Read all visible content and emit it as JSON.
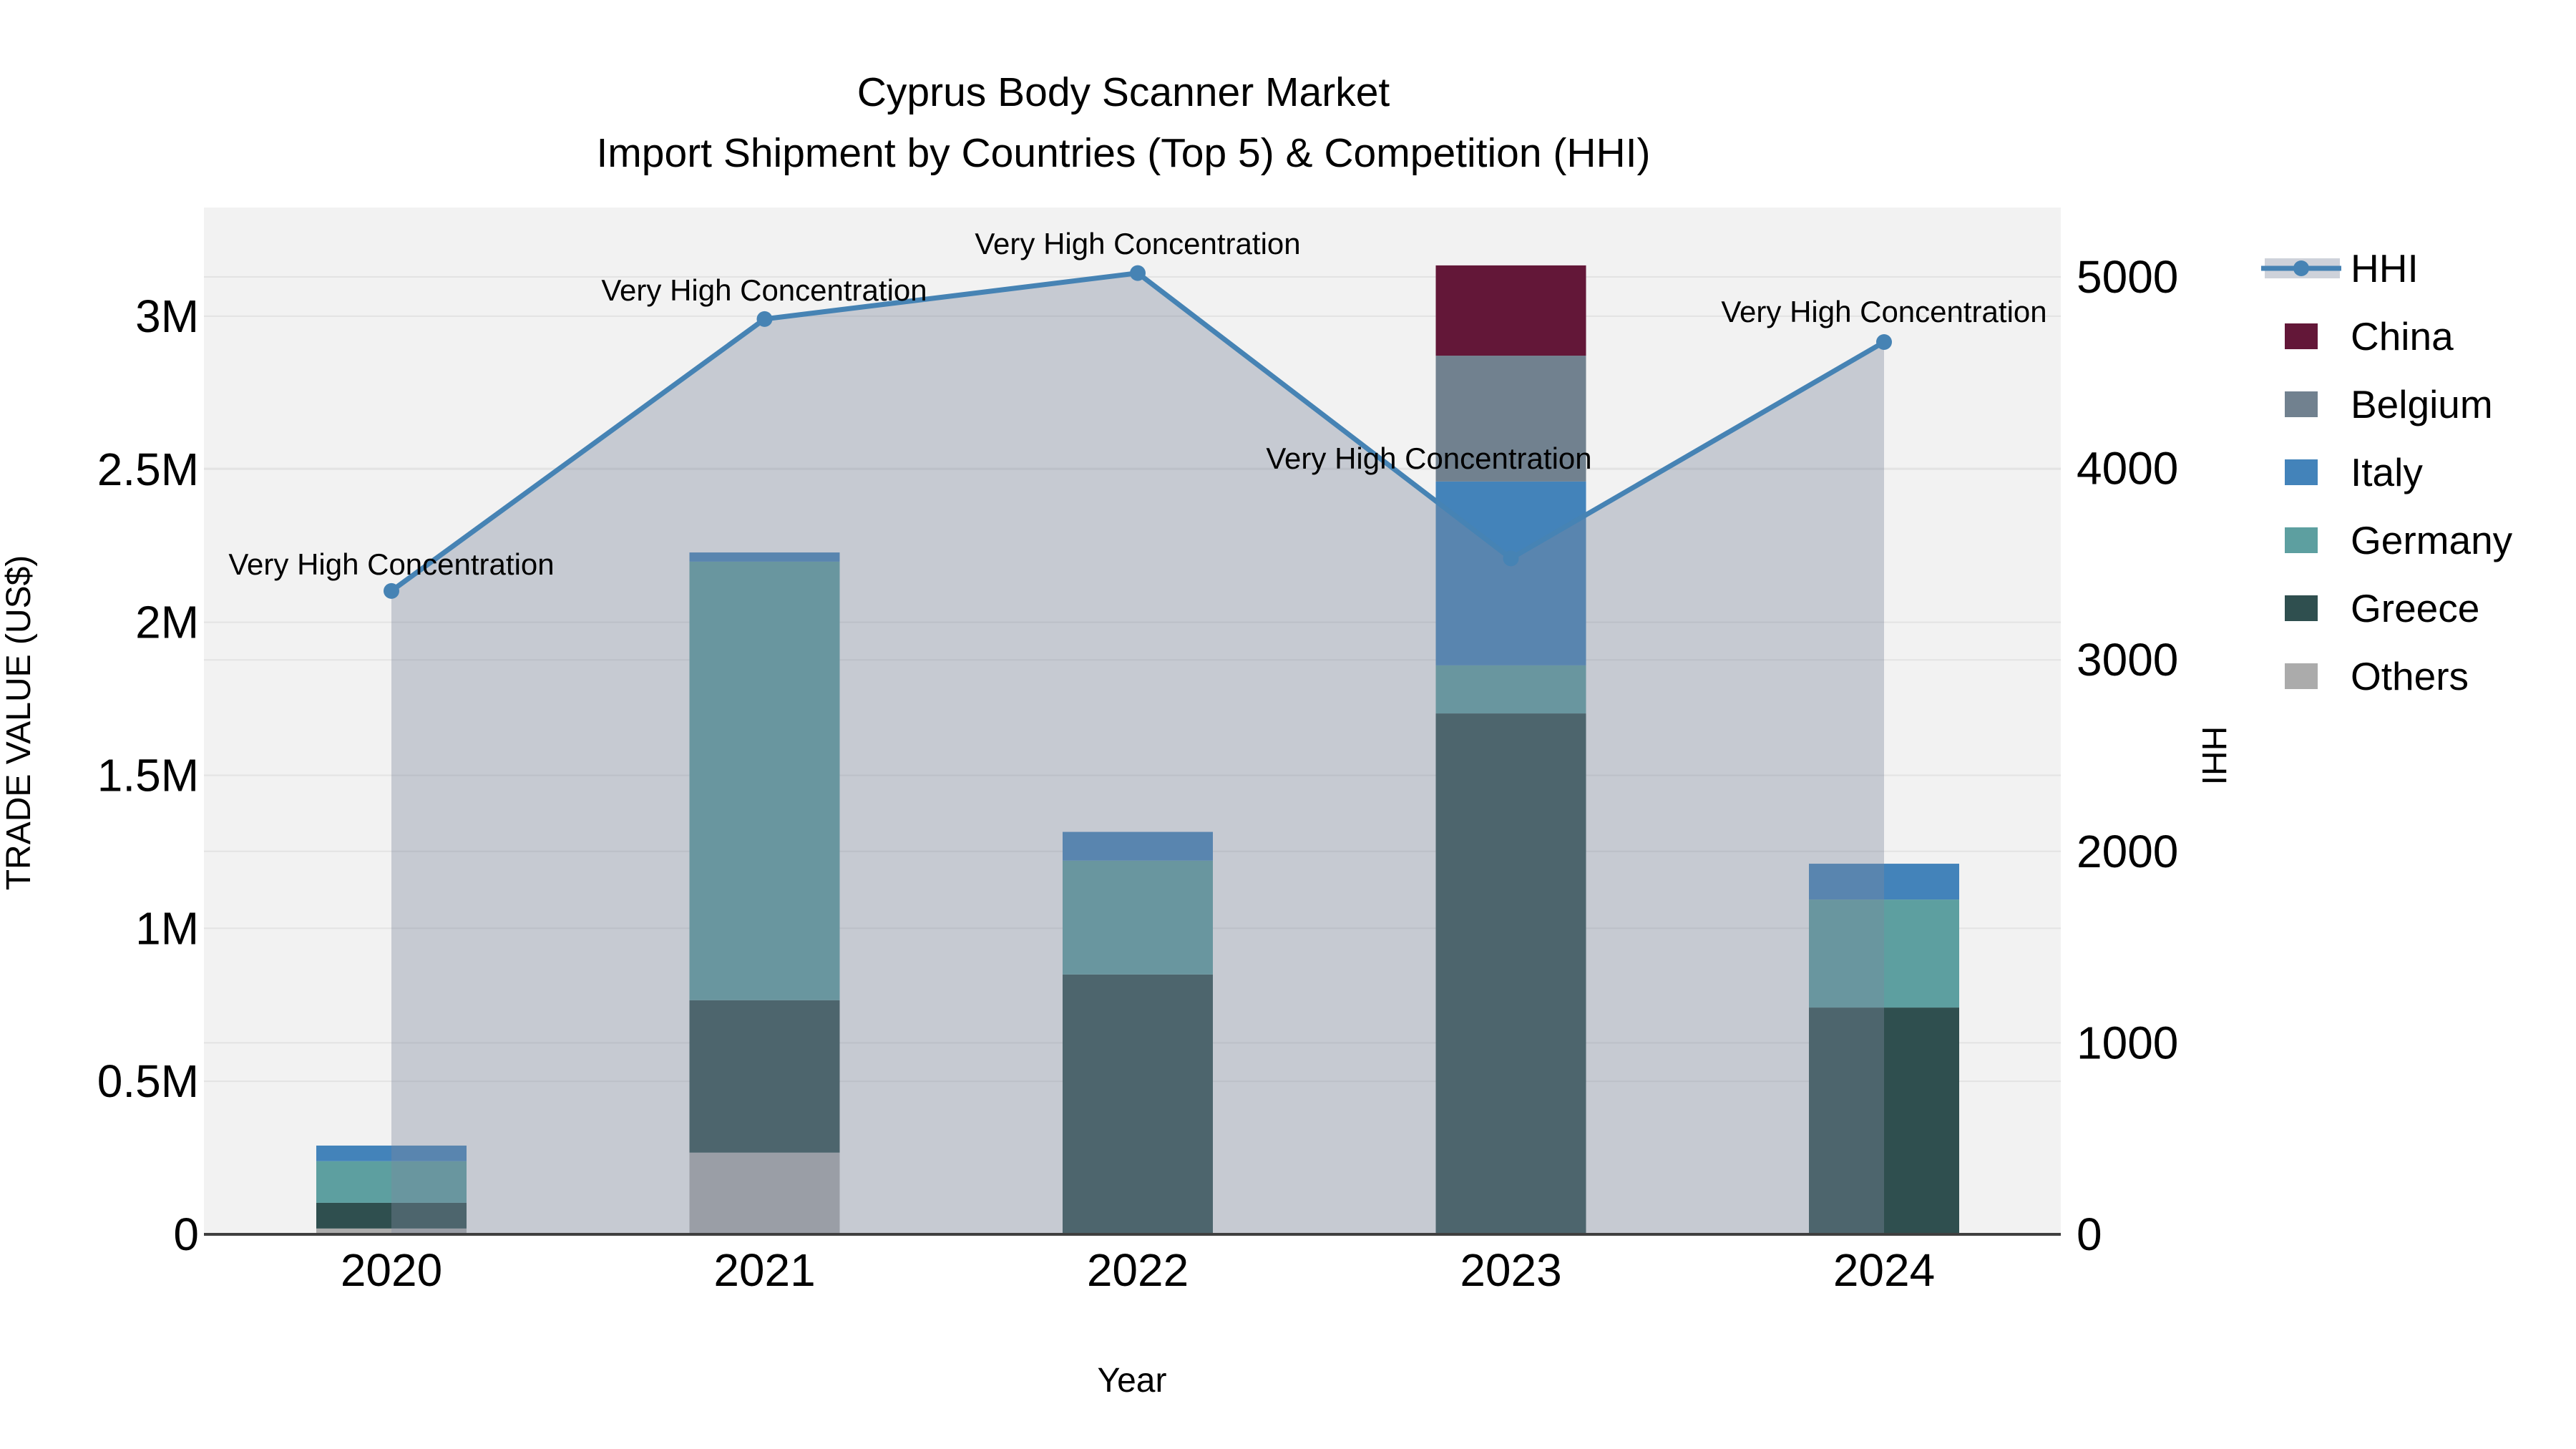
{
  "title": {
    "line1": "Cyprus Body Scanner Market",
    "line2": "Import Shipment by Countries (Top 5) & Competition (HHI)"
  },
  "axes": {
    "y_left": {
      "title": "TRADE VALUE (US$)",
      "ticks": [
        "0",
        "0.5M",
        "1M",
        "1.5M",
        "2M",
        "2.5M",
        "3M"
      ],
      "tick_values": [
        0,
        500000,
        1000000,
        1500000,
        2000000,
        2500000,
        3000000
      ],
      "range": [
        0,
        3000000
      ]
    },
    "y_right": {
      "title": "HHI",
      "ticks": [
        "0",
        "1000",
        "2000",
        "3000",
        "4000",
        "5000"
      ],
      "tick_values": [
        0,
        1000,
        2000,
        3000,
        4000,
        5000
      ],
      "range": [
        0,
        5000
      ]
    },
    "x": {
      "title": "Year",
      "ticks": [
        "2020",
        "2021",
        "2022",
        "2023",
        "2024"
      ]
    }
  },
  "chart_data": {
    "type": "bar+line",
    "title": "Cyprus Body Scanner Market — Import Shipment by Countries (Top 5) & Competition (HHI)",
    "categories": [
      2020,
      2021,
      2022,
      2023,
      2024
    ],
    "stack_order_bottom_to_top": [
      "Others",
      "Greece",
      "Germany",
      "Italy",
      "Belgium",
      "China"
    ],
    "series": [
      {
        "name": "Others",
        "color": "#ababab",
        "values": [
          19000,
          267000,
          0,
          0,
          0
        ]
      },
      {
        "name": "Greece",
        "color": "#2f4f4f",
        "values": [
          84000,
          498000,
          849000,
          1702000,
          741000
        ]
      },
      {
        "name": "Germany",
        "color": "#5d9fa0",
        "values": [
          136000,
          1433000,
          372000,
          157000,
          353000
        ]
      },
      {
        "name": "Italy",
        "color": "#4383ba",
        "values": [
          51000,
          30000,
          94000,
          601000,
          117000
        ]
      },
      {
        "name": "Belgium",
        "color": "#71818f",
        "values": [
          0,
          0,
          0,
          411000,
          0
        ]
      },
      {
        "name": "China",
        "color": "#631738",
        "values": [
          0,
          0,
          0,
          295000,
          0
        ]
      }
    ],
    "line_series": {
      "name": "HHI",
      "axis": "right",
      "values": [
        3360,
        4780,
        5020,
        3530,
        4660
      ],
      "color": "#4683b4",
      "area_fill": "rgba(125,136,159,0.38)",
      "marker": "circle"
    },
    "annotations": [
      {
        "text": "Very High Concentration",
        "x": 547,
        "y": 788
      },
      {
        "text": "Very High Concentration",
        "x": 1068,
        "y": 405
      },
      {
        "text": "Very High Concentration",
        "x": 1590,
        "y": 340
      },
      {
        "text": "Very High Concentration",
        "x": 1997,
        "y": 640
      },
      {
        "text": "Very High Concentration",
        "x": 2633,
        "y": 435
      }
    ],
    "xlabel": "Year",
    "ylabel_left": "TRADE VALUE (US$)",
    "ylabel_right": "HHI",
    "ylim_left": [
      0,
      3000000
    ],
    "ylim_right": [
      0,
      5000
    ],
    "grid": true,
    "legend_position": "right"
  },
  "legend": {
    "items": [
      {
        "label": "HHI",
        "type": "line",
        "color": "#4683b4"
      },
      {
        "label": "China",
        "type": "swatch",
        "color": "#631738"
      },
      {
        "label": "Belgium",
        "type": "swatch",
        "color": "#71818f"
      },
      {
        "label": "Italy",
        "type": "swatch",
        "color": "#4383ba"
      },
      {
        "label": "Germany",
        "type": "swatch",
        "color": "#5d9fa0"
      },
      {
        "label": "Greece",
        "type": "swatch",
        "color": "#2f4f4f"
      },
      {
        "label": "Others",
        "type": "swatch",
        "color": "#ababab"
      }
    ]
  },
  "colors": {
    "plot_background": "#f2f2f2",
    "page_background": "#ffffff",
    "gridline": "#e3e3e3",
    "axis_line": "#3f3f3f",
    "text": "#000000",
    "hhi_line": "#4683b4",
    "hhi_area": "rgba(125,136,159,0.38)"
  }
}
